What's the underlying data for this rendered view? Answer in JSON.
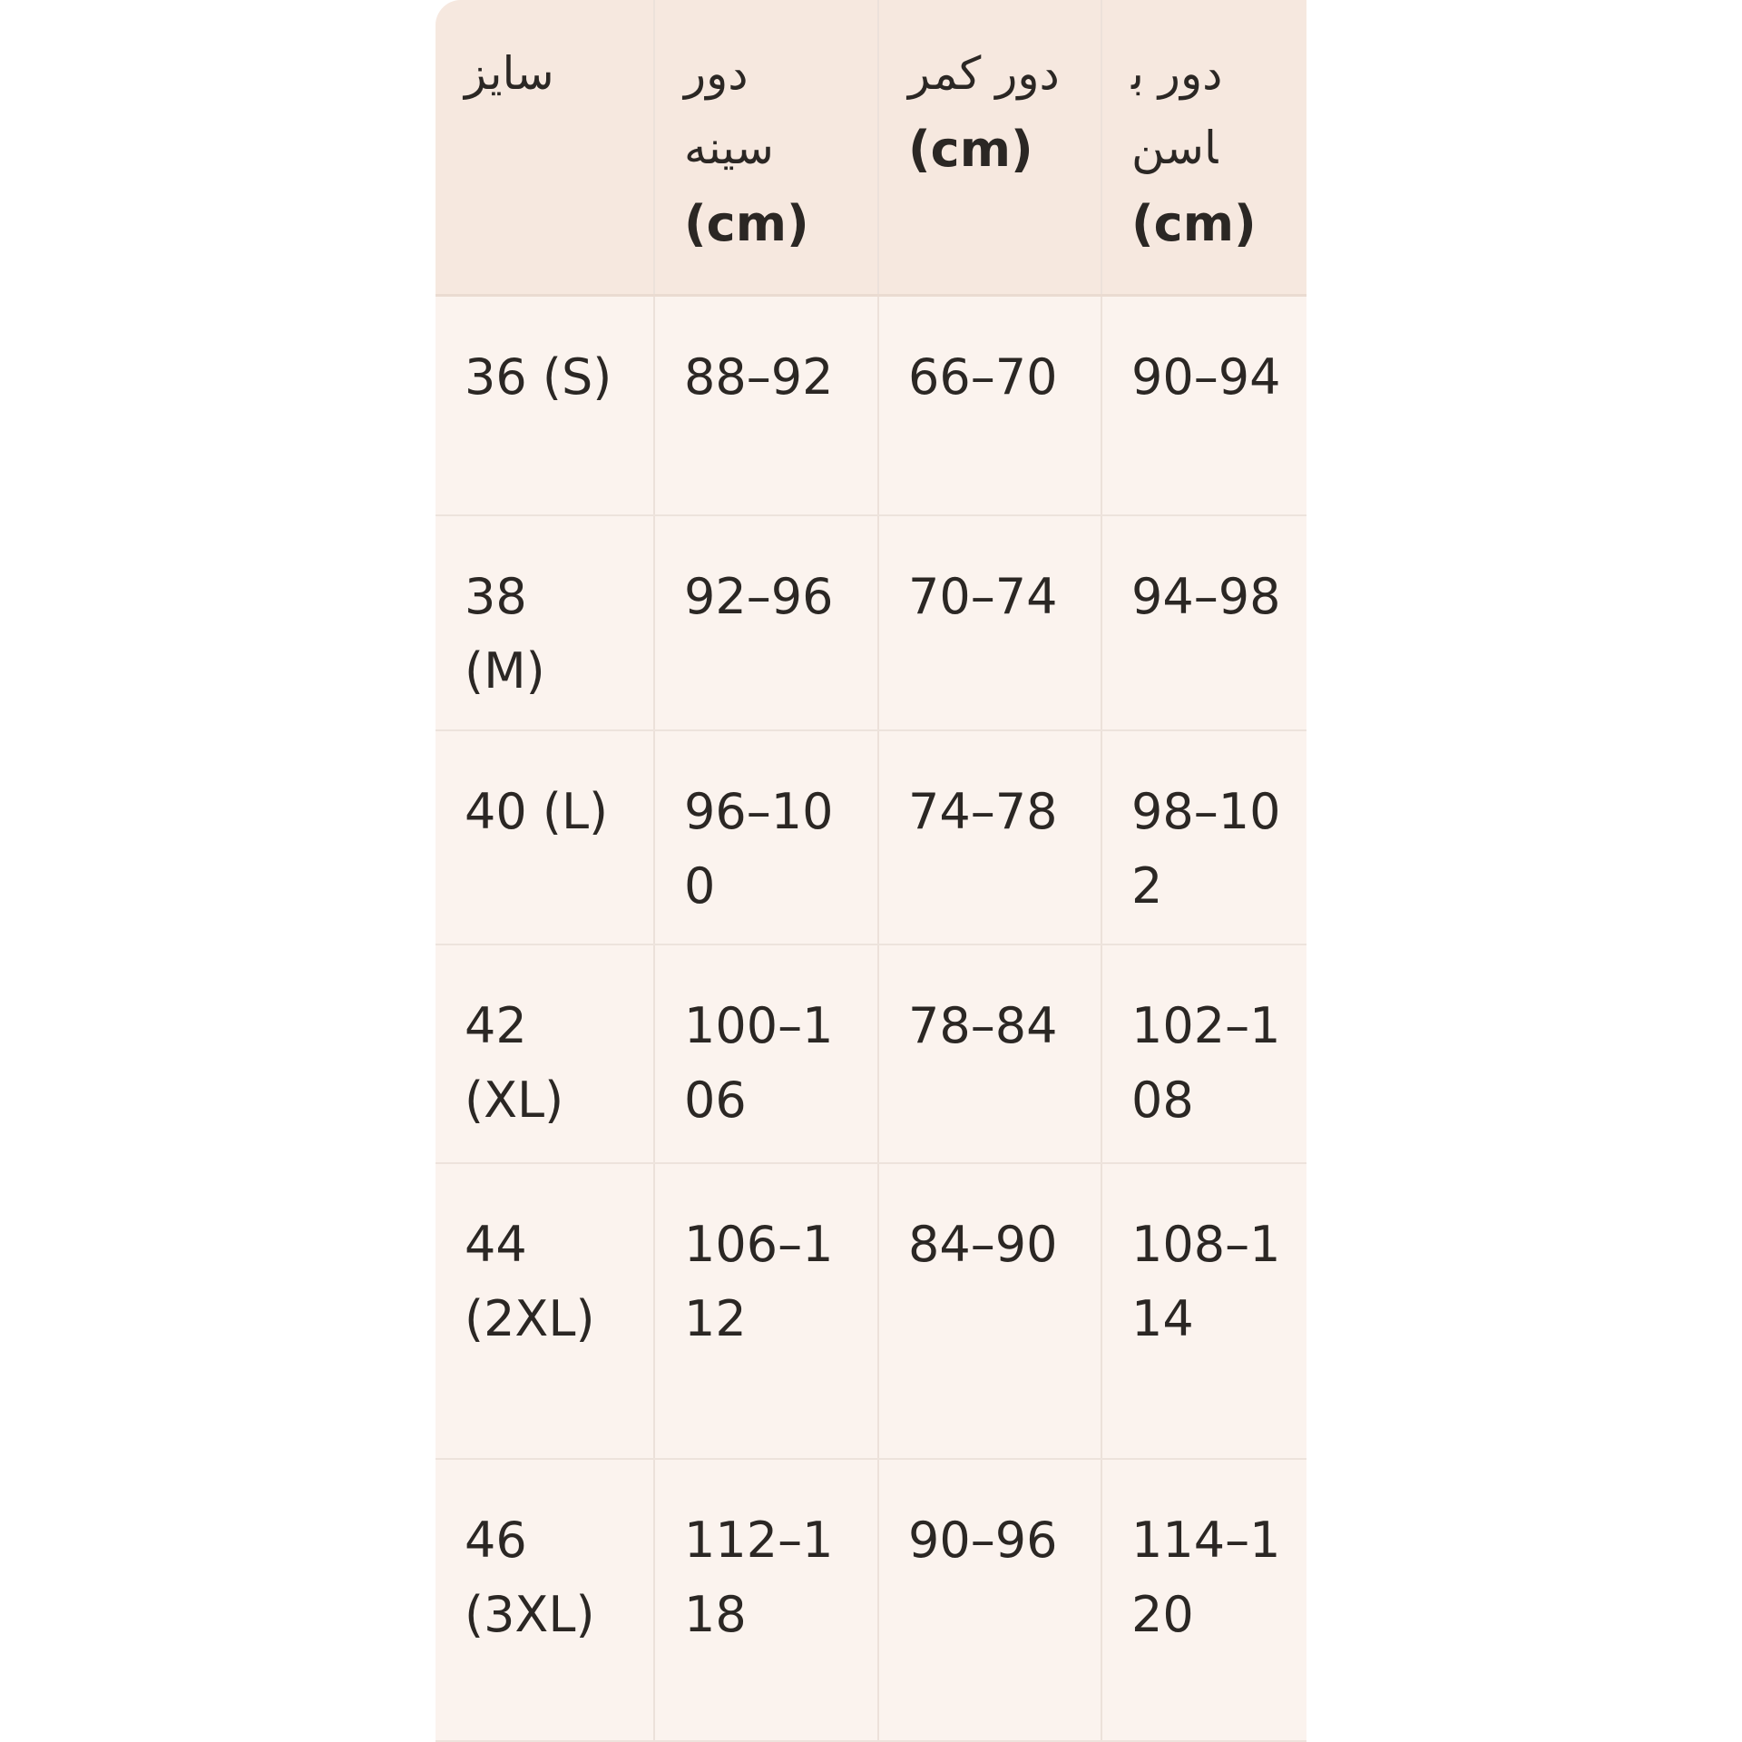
{
  "header": {
    "size": "سایز",
    "chest": {
      "label": "دور سینه",
      "unit": "(cm)"
    },
    "waist": {
      "label": "دور کمر",
      "unit": "(cm)"
    },
    "hip": {
      "label": "دور باسن",
      "unit": "(cm)"
    }
  },
  "rows": [
    {
      "size": "36 (S)",
      "chest": "88–92",
      "waist": "66–70",
      "hip": "90–94"
    },
    {
      "size": "38 (M)",
      "chest": "92–96",
      "waist": "70–74",
      "hip": "94–98"
    },
    {
      "size": "40 (L)",
      "chest": "96–100",
      "waist": "74–78",
      "hip": "98–102"
    },
    {
      "size": "42 (XL)",
      "chest": "100–106",
      "waist": "78–84",
      "hip": "102–108"
    },
    {
      "size": "44 (2XL)",
      "chest": "106–112",
      "waist": "84–90",
      "hip": "108–114"
    },
    {
      "size": "46 (3XL)",
      "chest": "112–118",
      "waist": "90–96",
      "hip": "114–120"
    }
  ],
  "colors": {
    "header_bg": "#f6e8df",
    "body_bg": "#fbf3ee",
    "text": "#2b2724"
  }
}
